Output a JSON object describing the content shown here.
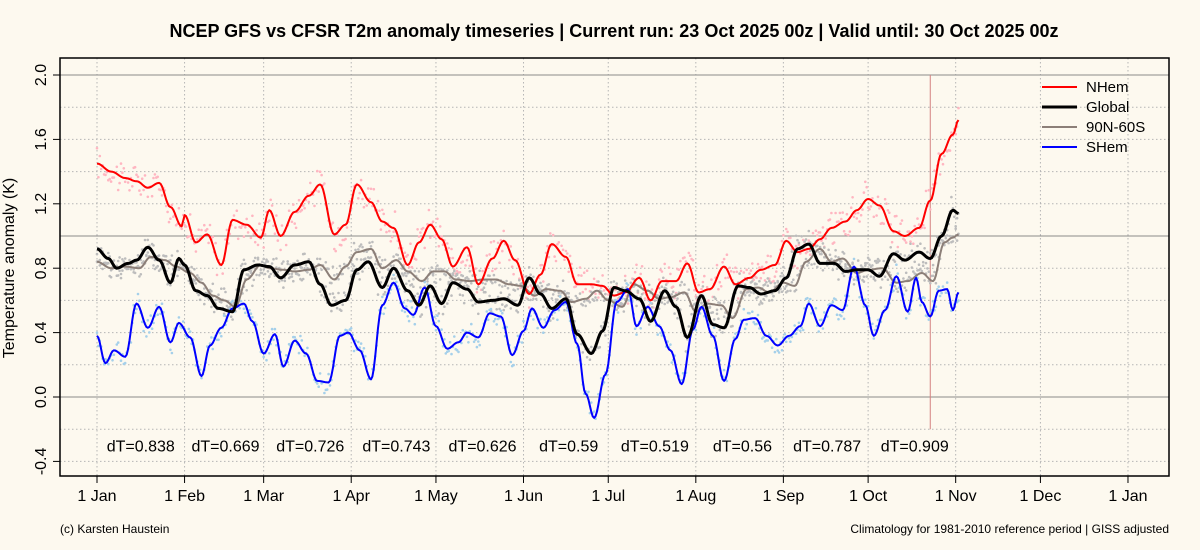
{
  "title": "NCEP GFS vs CFSR T2m anomaly timeseries | Current run: 23 Oct 2025 00z | Valid until: 30 Oct 2025 00z",
  "footer_left": "(c) Karsten Haustein",
  "footer_right": "Climatology for 1981-2010 reference period | GISS adjusted",
  "colors": {
    "background": "#fdf9ef",
    "nhem": "#ff0000",
    "global": "#000000",
    "band": "#8c7f78",
    "shem": "#0000ff",
    "nhem_points": "#ffb6c1",
    "global_points": "#bdbdbd",
    "shem_points": "#a5d0ea",
    "run_marker": "#d48080"
  },
  "chart_data": {
    "type": "line",
    "title": "NCEP GFS vs CFSR T2m anomaly timeseries | Current run: 23 Oct 2025 00z | Valid until: 30 Oct 2025 00z",
    "xlabel": "",
    "ylabel": "Temperature anomaly (K)",
    "xlim": [
      0,
      390
    ],
    "ylim": [
      -0.45,
      2.05
    ],
    "x_ticks": [
      {
        "day": 0,
        "label": "1 Jan"
      },
      {
        "day": 31,
        "label": "1 Feb"
      },
      {
        "day": 59,
        "label": "1 Mar"
      },
      {
        "day": 90,
        "label": "1 Apr"
      },
      {
        "day": 120,
        "label": "1 May"
      },
      {
        "day": 151,
        "label": "1 Jun"
      },
      {
        "day": 181,
        "label": "1 Jul"
      },
      {
        "day": 212,
        "label": "1 Aug"
      },
      {
        "day": 243,
        "label": "1 Sep"
      },
      {
        "day": 273,
        "label": "1 Oct"
      },
      {
        "day": 304,
        "label": "1 Nov"
      },
      {
        "day": 334,
        "label": "1 Dec"
      },
      {
        "day": 365,
        "label": "1 Jan"
      }
    ],
    "y_ticks": [
      "-0.4",
      "0.0",
      "0.4",
      "0.8",
      "1.2",
      "1.6",
      "2.0"
    ],
    "reference_lines": [
      0.0,
      1.0,
      2.0
    ],
    "run_marker_day": 295,
    "grid": true,
    "legend_position": "top-right",
    "x_unit": "day of year 2025",
    "series": [
      {
        "name": "NHem",
        "x": [
          0,
          5,
          10,
          14,
          18,
          22,
          26,
          30,
          31,
          35,
          39,
          44,
          48,
          53,
          58,
          61,
          65,
          70,
          75,
          79,
          84,
          88,
          92,
          97,
          101,
          105,
          110,
          114,
          118,
          122,
          126,
          131,
          135,
          140,
          144,
          148,
          153,
          157,
          161,
          166,
          170,
          175,
          179,
          183,
          187,
          192,
          196,
          200,
          205,
          209,
          213,
          217,
          222,
          226,
          231,
          235,
          240,
          244,
          248,
          252,
          256,
          260,
          265,
          269,
          273,
          277,
          282,
          286,
          291,
          295,
          299,
          303,
          305
        ],
        "values": [
          1.45,
          1.4,
          1.36,
          1.34,
          1.3,
          1.33,
          1.18,
          1.06,
          1.13,
          0.96,
          1.01,
          0.82,
          1.1,
          1.07,
          0.99,
          1.16,
          1.0,
          1.15,
          1.25,
          1.32,
          1.01,
          1.07,
          1.32,
          1.21,
          1.09,
          1.05,
          0.82,
          0.96,
          1.07,
          0.98,
          0.81,
          0.93,
          0.7,
          0.86,
          0.97,
          0.85,
          0.64,
          0.76,
          0.95,
          0.87,
          0.7,
          0.7,
          0.69,
          0.63,
          0.65,
          0.74,
          0.6,
          0.72,
          0.72,
          0.83,
          0.65,
          0.67,
          0.81,
          0.7,
          0.74,
          0.79,
          0.82,
          0.97,
          0.9,
          0.92,
          0.98,
          1.05,
          1.09,
          1.16,
          1.23,
          1.19,
          1.03,
          1.0,
          1.05,
          1.22,
          1.51,
          1.63,
          1.72
        ],
        "color": "#ff0000",
        "width": 2
      },
      {
        "name": "Global",
        "x": [
          0,
          4,
          7,
          11,
          14,
          18,
          22,
          26,
          29,
          31,
          35,
          39,
          43,
          48,
          52,
          57,
          61,
          65,
          70,
          75,
          79,
          83,
          88,
          92,
          96,
          101,
          105,
          110,
          114,
          118,
          122,
          126,
          131,
          135,
          140,
          144,
          149,
          153,
          157,
          161,
          166,
          170,
          175,
          179,
          183,
          187,
          192,
          196,
          201,
          205,
          209,
          214,
          218,
          222,
          227,
          231,
          235,
          240,
          244,
          248,
          252,
          256,
          261,
          265,
          269,
          273,
          277,
          282,
          286,
          291,
          295,
          299,
          303,
          305
        ],
        "values": [
          0.92,
          0.86,
          0.8,
          0.83,
          0.85,
          0.93,
          0.85,
          0.71,
          0.86,
          0.82,
          0.66,
          0.63,
          0.55,
          0.53,
          0.79,
          0.82,
          0.81,
          0.74,
          0.82,
          0.84,
          0.7,
          0.57,
          0.6,
          0.79,
          0.84,
          0.68,
          0.8,
          0.66,
          0.57,
          0.69,
          0.58,
          0.71,
          0.67,
          0.59,
          0.6,
          0.61,
          0.57,
          0.74,
          0.64,
          0.55,
          0.61,
          0.39,
          0.27,
          0.41,
          0.68,
          0.66,
          0.61,
          0.47,
          0.66,
          0.56,
          0.37,
          0.63,
          0.45,
          0.43,
          0.69,
          0.68,
          0.64,
          0.66,
          0.74,
          0.92,
          0.95,
          0.83,
          0.83,
          0.78,
          0.79,
          0.79,
          0.75,
          0.89,
          0.85,
          0.9,
          0.86,
          1.0,
          1.16,
          1.14
        ],
        "color": "#000000",
        "width": 3
      },
      {
        "name": "90N-60S",
        "x": [
          0,
          5,
          10,
          15,
          19,
          24,
          28,
          33,
          37,
          41,
          45,
          49,
          53,
          58,
          61,
          66,
          70,
          75,
          79,
          84,
          88,
          92,
          97,
          101,
          106,
          110,
          115,
          119,
          123,
          127,
          132,
          137,
          141,
          146,
          150,
          155,
          159,
          164,
          168,
          173,
          177,
          181,
          186,
          190,
          195,
          199,
          203,
          208,
          212,
          216,
          221,
          225,
          230,
          234,
          238,
          243,
          247,
          251,
          256,
          260,
          264,
          269,
          273,
          278,
          283,
          287,
          292,
          296,
          300,
          303,
          305
        ],
        "values": [
          0.84,
          0.8,
          0.81,
          0.8,
          0.87,
          0.85,
          0.81,
          0.77,
          0.71,
          0.63,
          0.6,
          0.56,
          0.73,
          0.82,
          0.8,
          0.79,
          0.78,
          0.79,
          0.82,
          0.73,
          0.81,
          0.9,
          0.92,
          0.8,
          0.85,
          0.78,
          0.72,
          0.78,
          0.78,
          0.73,
          0.72,
          0.73,
          0.73,
          0.7,
          0.69,
          0.63,
          0.67,
          0.66,
          0.59,
          0.61,
          0.66,
          0.6,
          0.56,
          0.7,
          0.66,
          0.61,
          0.62,
          0.65,
          0.53,
          0.58,
          0.57,
          0.49,
          0.67,
          0.68,
          0.65,
          0.71,
          0.69,
          0.84,
          0.92,
          0.84,
          0.86,
          0.77,
          0.79,
          0.8,
          0.71,
          0.72,
          0.77,
          0.72,
          0.96,
          0.99,
          1.01
        ],
        "color": "#8c7f78",
        "width": 2
      },
      {
        "name": "SHem",
        "x": [
          0,
          3,
          6,
          10,
          14,
          18,
          22,
          26,
          29,
          33,
          37,
          40,
          44,
          48,
          52,
          55,
          59,
          63,
          66,
          70,
          74,
          78,
          82,
          86,
          89,
          93,
          97,
          101,
          105,
          109,
          112,
          116,
          120,
          124,
          128,
          131,
          135,
          139,
          143,
          147,
          151,
          154,
          158,
          162,
          166,
          170,
          173,
          176,
          180,
          184,
          188,
          191,
          195,
          199,
          203,
          207,
          211,
          214,
          218,
          222,
          226,
          229,
          233,
          237,
          241,
          245,
          249,
          252,
          256,
          260,
          264,
          268,
          272,
          275,
          279,
          283,
          287,
          290,
          292,
          295,
          298,
          301,
          303,
          305
        ],
        "values": [
          0.38,
          0.21,
          0.29,
          0.25,
          0.58,
          0.43,
          0.56,
          0.34,
          0.46,
          0.37,
          0.13,
          0.32,
          0.43,
          0.55,
          0.58,
          0.47,
          0.27,
          0.39,
          0.19,
          0.35,
          0.27,
          0.1,
          0.09,
          0.38,
          0.4,
          0.29,
          0.11,
          0.57,
          0.71,
          0.55,
          0.51,
          0.68,
          0.44,
          0.3,
          0.34,
          0.4,
          0.37,
          0.52,
          0.5,
          0.26,
          0.41,
          0.55,
          0.43,
          0.54,
          0.59,
          0.33,
          0.02,
          -0.13,
          0.14,
          0.59,
          0.67,
          0.44,
          0.56,
          0.44,
          0.29,
          0.08,
          0.42,
          0.56,
          0.38,
          0.1,
          0.36,
          0.48,
          0.49,
          0.38,
          0.32,
          0.38,
          0.44,
          0.58,
          0.44,
          0.57,
          0.54,
          0.81,
          0.57,
          0.38,
          0.54,
          0.75,
          0.53,
          0.74,
          0.59,
          0.5,
          0.66,
          0.67,
          0.54,
          0.65
        ],
        "color": "#0000ff",
        "width": 2
      }
    ],
    "annotations": [
      {
        "x": 15.5,
        "y": -0.3,
        "text": "dT=0.838"
      },
      {
        "x": 45.5,
        "y": -0.3,
        "text": "dT=0.669"
      },
      {
        "x": 75.5,
        "y": -0.3,
        "text": "dT=0.726"
      },
      {
        "x": 106,
        "y": -0.3,
        "text": "dT=0.743"
      },
      {
        "x": 136.5,
        "y": -0.3,
        "text": "dT=0.626"
      },
      {
        "x": 167,
        "y": -0.3,
        "text": "dT=0.59"
      },
      {
        "x": 197.5,
        "y": -0.3,
        "text": "dT=0.519"
      },
      {
        "x": 228.5,
        "y": -0.3,
        "text": "dT=0.56"
      },
      {
        "x": 258.5,
        "y": -0.3,
        "text": "dT=0.787"
      },
      {
        "x": 289.5,
        "y": -0.3,
        "text": "dT=0.909"
      }
    ]
  }
}
